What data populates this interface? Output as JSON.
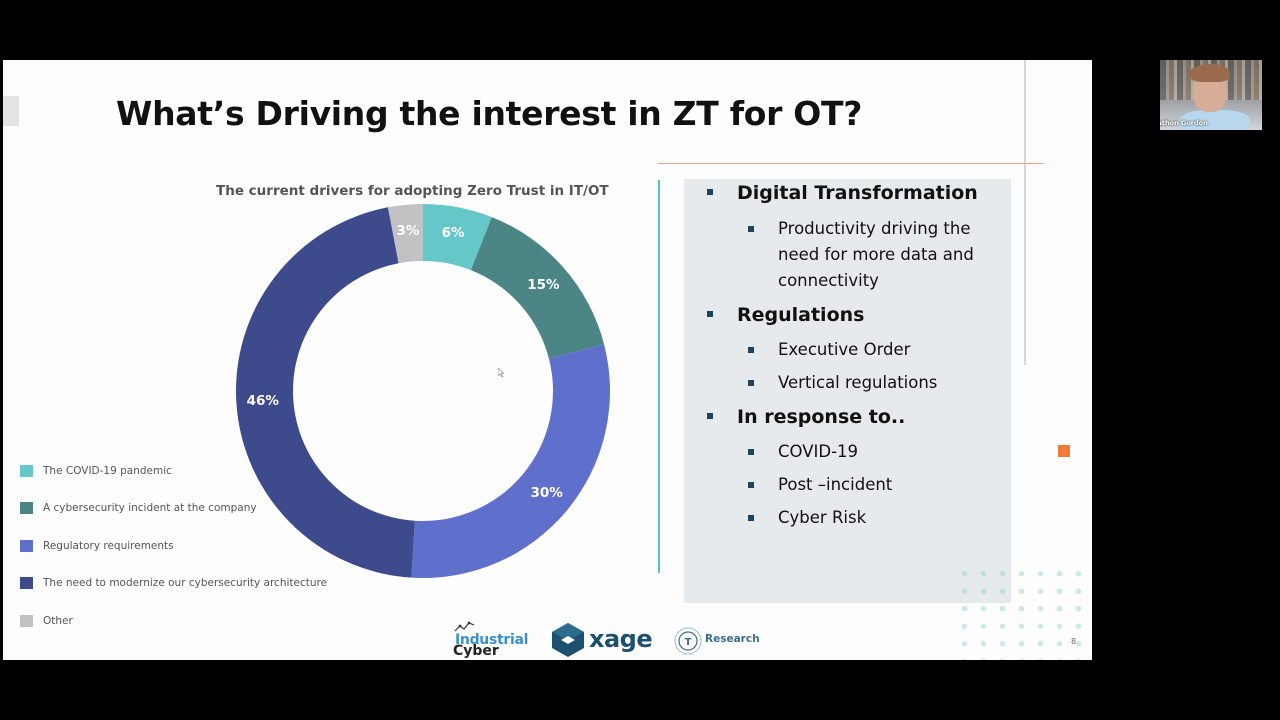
{
  "slide": {
    "title": "What’s Driving the interest in ZT for OT?",
    "page_number": "8",
    "accent_colors": {
      "salmon_line": "#ef9f8d",
      "teal_line": "#4fc4cf",
      "orange_square": "#f07b3a",
      "bullet_square": "#1c4460",
      "panel_bg": "#e7eaec"
    }
  },
  "chart_data": {
    "type": "pie",
    "subtype": "donut",
    "title": "The current drivers for adopting Zero Trust in IT/OT",
    "categories": [
      "The COVID-19 pandemic",
      "A cybersecurity incident at the company",
      "Regulatory requirements",
      "The need to modernize our cybersecurity architecture",
      "Other"
    ],
    "values": [
      6,
      15,
      30,
      46,
      3
    ],
    "labels": [
      "6%",
      "15%",
      "30%",
      "46%",
      "3%"
    ],
    "colors": [
      "#66c7c8",
      "#4b8586",
      "#5f6fcc",
      "#3d4a8c",
      "#c2c2c4"
    ],
    "unit": "%",
    "start_angle": "12 o'clock, clockwise",
    "legend_position": "left-bottom"
  },
  "legend": {
    "items": [
      {
        "label": "The COVID-19 pandemic",
        "color": "#66c7c8"
      },
      {
        "label": "A cybersecurity incident at the company",
        "color": "#4b8586"
      },
      {
        "label": "Regulatory requirements",
        "color": "#5f6fcc"
      },
      {
        "label": "The need to modernize our cybersecurity architecture",
        "color": "#3d4a8c"
      },
      {
        "label": "Other",
        "color": "#c2c2c4"
      }
    ]
  },
  "bullets": {
    "groups": [
      {
        "heading": "Digital Transformation",
        "items": [
          "Productivity driving the",
          "need for more data and",
          "connectivity"
        ]
      },
      {
        "heading": "Regulations",
        "items": [
          "Executive Order",
          "Vertical regulations"
        ]
      },
      {
        "heading": "In response to..",
        "items": [
          "COVID-19",
          "Post –incident",
          "Cyber Risk"
        ]
      }
    ]
  },
  "logos": {
    "industrial_cyber": {
      "line1": "Industrial",
      "line2": "Cyber"
    },
    "xage": "xage",
    "research": "Research"
  },
  "webcam": {
    "participant_name": "Jonathon Gordon"
  }
}
